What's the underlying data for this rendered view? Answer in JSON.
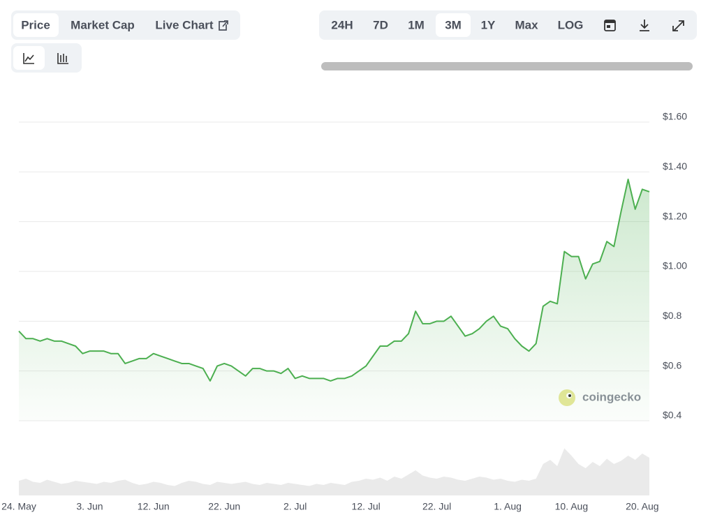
{
  "ui": {
    "tabs": [
      "Price",
      "Market Cap",
      "Live Chart"
    ],
    "ranges": [
      "24H",
      "7D",
      "1M",
      "3M",
      "1Y",
      "Max",
      "LOG"
    ],
    "active_tab": "Price",
    "active_range": "3M",
    "watermark": "coingecko"
  },
  "chart_data": {
    "type": "line",
    "categories": [
      "24. May",
      null,
      null,
      null,
      null,
      null,
      null,
      null,
      null,
      null,
      "3. Jun",
      null,
      null,
      null,
      null,
      null,
      null,
      null,
      null,
      "12. Jun",
      null,
      null,
      null,
      null,
      null,
      null,
      null,
      null,
      null,
      "22. Jun",
      null,
      null,
      null,
      null,
      null,
      null,
      null,
      null,
      null,
      "2. Jul",
      null,
      null,
      null,
      null,
      null,
      null,
      null,
      null,
      null,
      "12. Jul",
      null,
      null,
      null,
      null,
      null,
      null,
      null,
      null,
      null,
      "22. Jul",
      null,
      null,
      null,
      null,
      null,
      null,
      null,
      null,
      null,
      "1. Aug",
      null,
      null,
      null,
      null,
      null,
      null,
      null,
      null,
      "10. Aug",
      null,
      null,
      null,
      null,
      null,
      null,
      null,
      null,
      null,
      "20. Aug",
      null
    ],
    "series": [
      {
        "name": "Price",
        "color": "#4caf50",
        "values": [
          0.76,
          0.73,
          0.73,
          0.72,
          0.73,
          0.72,
          0.72,
          0.71,
          0.7,
          0.67,
          0.68,
          0.68,
          0.68,
          0.67,
          0.67,
          0.63,
          0.64,
          0.65,
          0.65,
          0.67,
          0.66,
          0.65,
          0.64,
          0.63,
          0.63,
          0.62,
          0.61,
          0.56,
          0.62,
          0.63,
          0.62,
          0.6,
          0.58,
          0.61,
          0.61,
          0.6,
          0.6,
          0.59,
          0.61,
          0.57,
          0.58,
          0.57,
          0.57,
          0.57,
          0.56,
          0.57,
          0.57,
          0.58,
          0.6,
          0.62,
          0.66,
          0.7,
          0.7,
          0.72,
          0.72,
          0.75,
          0.84,
          0.79,
          0.79,
          0.8,
          0.8,
          0.82,
          0.78,
          0.74,
          0.75,
          0.77,
          0.8,
          0.82,
          0.78,
          0.77,
          0.73,
          0.7,
          0.68,
          0.71,
          0.86,
          0.88,
          0.87,
          1.08,
          1.06,
          1.06,
          0.97,
          1.03,
          1.04,
          1.12,
          1.1,
          1.24,
          1.37,
          1.25,
          1.33,
          1.32
        ]
      },
      {
        "name": "Volume",
        "color": "#d9d9d9",
        "axis": "y2",
        "values": [
          14,
          16,
          13,
          12,
          15,
          13,
          11,
          12,
          14,
          13,
          12,
          11,
          13,
          12,
          14,
          15,
          12,
          10,
          11,
          13,
          12,
          10,
          9,
          12,
          14,
          13,
          11,
          10,
          13,
          12,
          11,
          12,
          13,
          11,
          10,
          12,
          11,
          10,
          12,
          11,
          10,
          9,
          11,
          10,
          12,
          11,
          10,
          13,
          14,
          16,
          15,
          17,
          14,
          18,
          16,
          20,
          24,
          19,
          17,
          16,
          18,
          17,
          15,
          14,
          16,
          18,
          17,
          15,
          16,
          14,
          13,
          15,
          14,
          16,
          30,
          34,
          28,
          45,
          38,
          30,
          26,
          32,
          28,
          35,
          30,
          33,
          38,
          34,
          40,
          36
        ]
      }
    ],
    "ylim": [
      0.4,
      1.6
    ],
    "yticks": [
      {
        "value": 0.4,
        "label": "$0.4"
      },
      {
        "value": 0.6,
        "label": "$0.6"
      },
      {
        "value": 0.8,
        "label": "$0.8"
      },
      {
        "value": 1.0,
        "label": "$1.00"
      },
      {
        "value": 1.2,
        "label": "$1.20"
      },
      {
        "value": 1.4,
        "label": "$1.40"
      },
      {
        "value": 1.6,
        "label": "$1.60"
      }
    ],
    "y2lim": [
      0,
      100
    ],
    "grid": true
  }
}
